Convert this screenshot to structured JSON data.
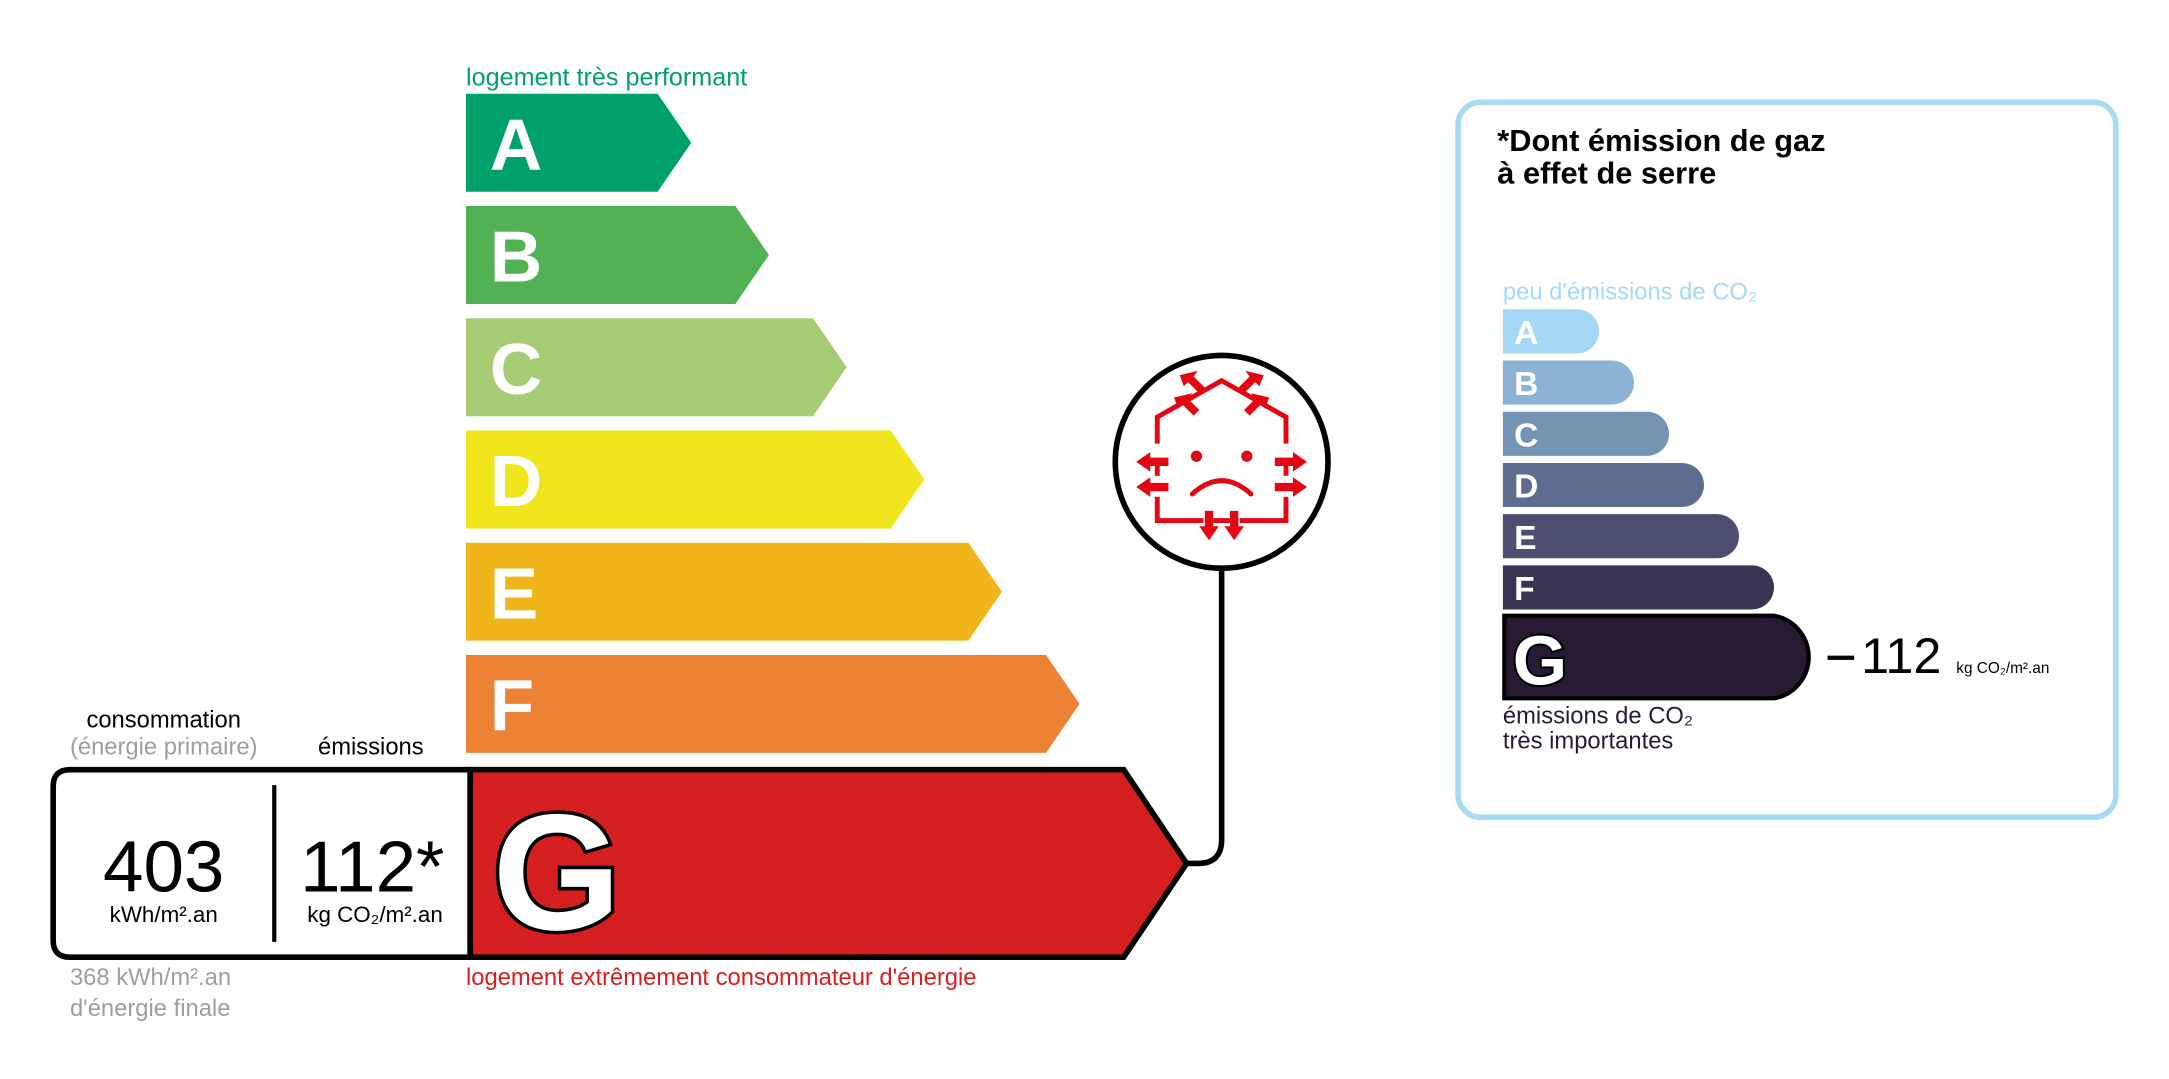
{
  "energy_label": {
    "top_caption": "logement très performant",
    "bottom_caption": "logement extrêmement consommateur d'énergie",
    "classes": [
      {
        "letter": "A",
        "color": "#00a06a"
      },
      {
        "letter": "B",
        "color": "#52b153"
      },
      {
        "letter": "C",
        "color": "#a5cc74"
      },
      {
        "letter": "D",
        "color": "#f0e51d"
      },
      {
        "letter": "E",
        "color": "#f0b51a"
      },
      {
        "letter": "F",
        "color": "#eb8234"
      },
      {
        "letter": "G",
        "color": "#d61f21"
      }
    ],
    "current_class": "G",
    "consumption_header": "consommation",
    "consumption_subheader": "(énergie primaire)",
    "emissions_header": "émissions",
    "consumption_value": "403",
    "consumption_unit": "kWh/m².an",
    "emissions_value": "112*",
    "emissions_unit": "kg CO₂/m².an",
    "final_energy_line1": "368 kWh/m².an",
    "final_energy_line2": "d'énergie finale",
    "badge_icon": "sad-house-heat-loss-icon"
  },
  "ges_label": {
    "title_line1": "*Dont émission de gaz",
    "title_line2": "à effet de serre",
    "top_caption": "peu d'émissions de CO₂",
    "classes": [
      {
        "letter": "A",
        "color": "#a4d8f5"
      },
      {
        "letter": "B",
        "color": "#8db3d4"
      },
      {
        "letter": "C",
        "color": "#7593b3"
      },
      {
        "letter": "D",
        "color": "#5e6d8f"
      },
      {
        "letter": "E",
        "color": "#4c4f6f"
      },
      {
        "letter": "F",
        "color": "#383452"
      },
      {
        "letter": "G",
        "color": "#281a33"
      }
    ],
    "current_class": "G",
    "value": "112",
    "unit": "kg CO₂/m².an",
    "bottom_caption_line1": "émissions de CO₂",
    "bottom_caption_line2": "très importantes",
    "border_color": "#a6daf5"
  }
}
